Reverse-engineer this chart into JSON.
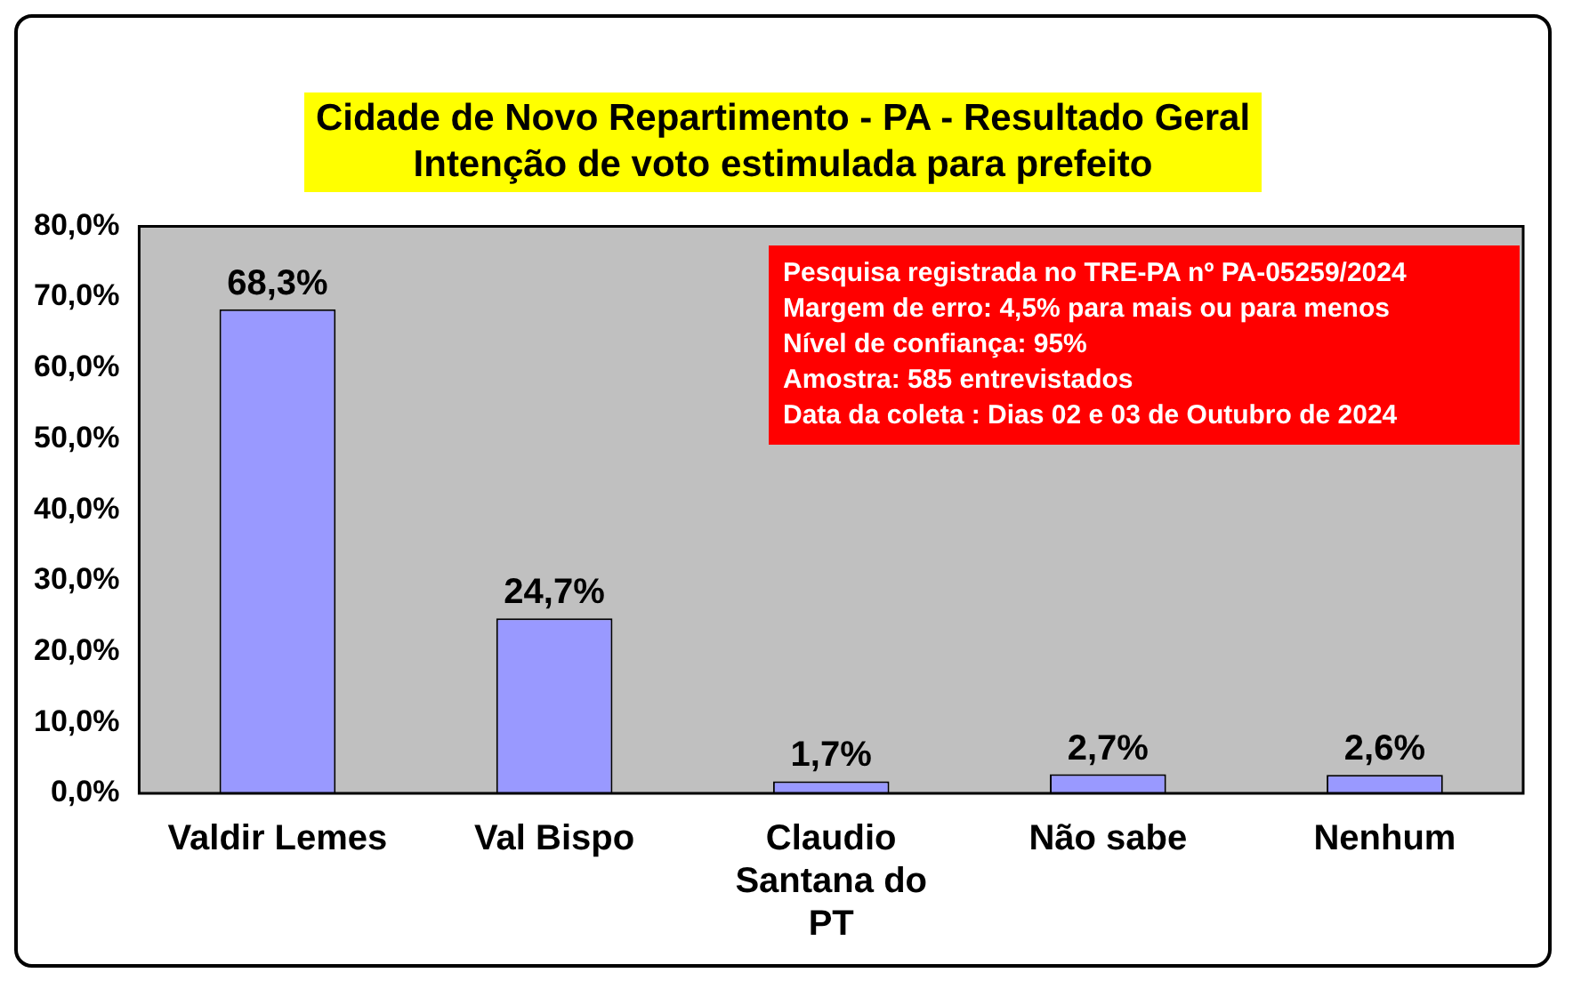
{
  "chart_data": {
    "type": "bar",
    "title": "Cidade de Novo Repartimento - PA - Resultado Geral",
    "subtitle": "Intenção de voto estimulada para prefeito",
    "categories": [
      "Valdir Lemes",
      "Val Bispo",
      "Claudio Santana do PT",
      "Não sabe",
      "Nenhum"
    ],
    "values": [
      68.3,
      24.7,
      1.7,
      2.7,
      2.6
    ],
    "color": "#9999ff",
    "value_labels": [
      "68,3%",
      "24,7%",
      "1,7%",
      "2,7%",
      "2,6%"
    ],
    "ylim": [
      0,
      80
    ],
    "yticks": [
      {
        "value": 0,
        "label": "0,0%"
      },
      {
        "value": 10,
        "label": "10,0%"
      },
      {
        "value": 20,
        "label": "20,0%"
      },
      {
        "value": 30,
        "label": "30,0%"
      },
      {
        "value": 40,
        "label": "40,0%"
      },
      {
        "value": 50,
        "label": "50,0%"
      },
      {
        "value": 60,
        "label": "60,0%"
      },
      {
        "value": 70,
        "label": "70,0%"
      },
      {
        "value": 80,
        "label": "80,0%"
      }
    ],
    "grid": false,
    "legend": false,
    "annotations": [
      "Pesquisa registrada no TRE-PA nº PA-05259/2024",
      "Margem de erro: 4,5% para mais ou para menos",
      "Nível de confiança: 95%",
      "Amostra: 585 entrevistados",
      "Data da coleta : Dias 02 e 03 de Outubro de 2024"
    ]
  }
}
